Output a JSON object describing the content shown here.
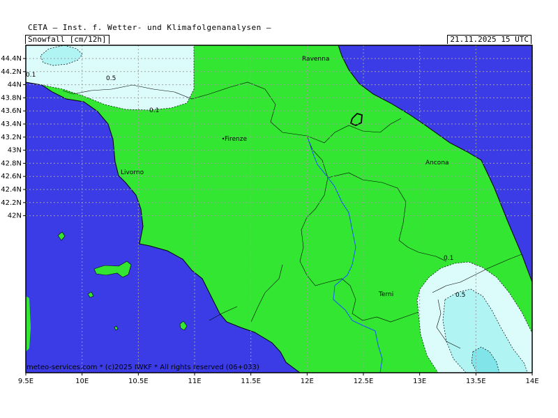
{
  "header": {
    "title": "CETA — Inst. f. Wetter- und Klimafolgenanalysen —",
    "parameter": "Snowfall [cm/12h]",
    "valid_time": "21.11.2025 15 UTC"
  },
  "footer": {
    "credit": "meteo-services.com * (c)2025 IWKF * All rights reserved (06+033)"
  },
  "axes": {
    "y_ticks": [
      "44.4N",
      "44.2N",
      "44N",
      "43.8N",
      "43.6N",
      "43.4N",
      "43.2N",
      "43N",
      "42.8N",
      "42.6N",
      "42.4N",
      "42.2N",
      "42N"
    ],
    "x_ticks": [
      "9.5E",
      "10E",
      "10.5E",
      "11E",
      "11.5E",
      "12E",
      "12.5E",
      "13E",
      "13.5E",
      "14E"
    ]
  },
  "cities": [
    "Ravenna",
    "Firenze",
    "Livorno",
    "Ancona",
    "Terni"
  ],
  "contours": {
    "top_outer": "0.1",
    "top_inner": "0.5",
    "top_outer_right": "0.1",
    "se_outer": "0.1",
    "se_inner": "0.5"
  },
  "colors": {
    "sea": "#3c3ce6",
    "land": "#32e632",
    "snow_low": "#dcfcfc",
    "snow_mid": "#b0f4f4",
    "snow_high": "#80e4e8",
    "grid": "#a0a0a0",
    "border": "#000000",
    "river": "#1e50ff"
  }
}
